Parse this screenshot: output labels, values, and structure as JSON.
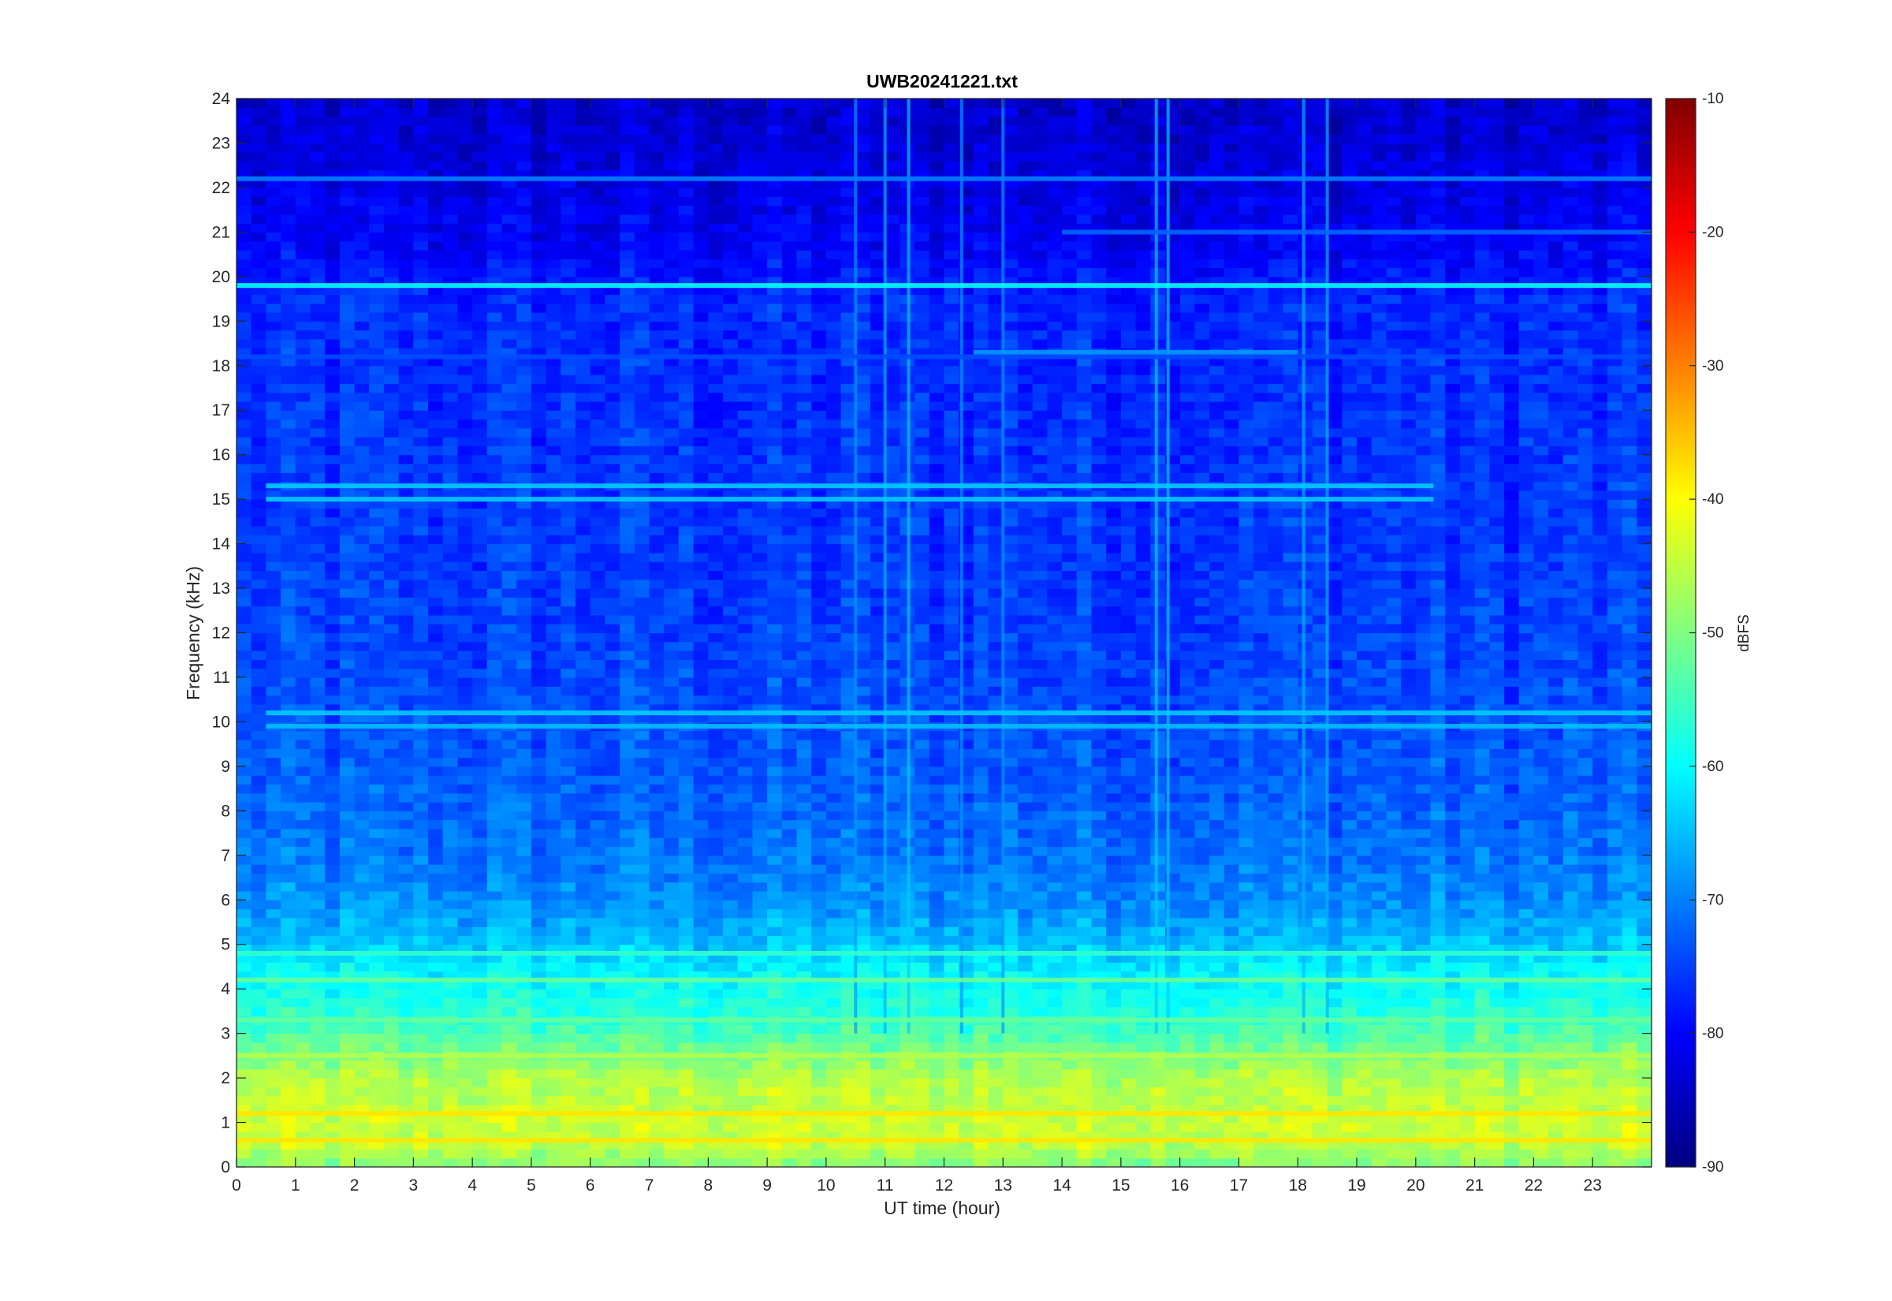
{
  "chart_data": {
    "type": "heatmap",
    "title": "UWB20241221.txt",
    "xlabel": "UT time (hour)",
    "ylabel": "Frequency (kHz)",
    "xlim": [
      0,
      24
    ],
    "ylim": [
      0,
      24
    ],
    "x_ticks": [
      "0",
      "1",
      "2",
      "3",
      "4",
      "5",
      "6",
      "7",
      "8",
      "9",
      "10",
      "11",
      "12",
      "13",
      "14",
      "15",
      "16",
      "17",
      "18",
      "19",
      "20",
      "21",
      "22",
      "23"
    ],
    "y_ticks": [
      "0",
      "1",
      "2",
      "3",
      "4",
      "5",
      "6",
      "7",
      "8",
      "9",
      "10",
      "11",
      "12",
      "13",
      "14",
      "15",
      "16",
      "17",
      "18",
      "19",
      "20",
      "21",
      "22",
      "23",
      "24"
    ],
    "colorbar": {
      "label": "dBFS",
      "range": [
        -90,
        -10
      ],
      "ticks": [
        "-10",
        "-20",
        "-30",
        "-40",
        "-50",
        "-60",
        "-70",
        "-80",
        "-90"
      ],
      "colormap": "jet"
    },
    "background_level_profile": [
      {
        "freq_khz": 0.0,
        "dbfs": -50
      },
      {
        "freq_khz": 0.5,
        "dbfs": -45
      },
      {
        "freq_khz": 1.0,
        "dbfs": -44
      },
      {
        "freq_khz": 1.5,
        "dbfs": -45
      },
      {
        "freq_khz": 2.0,
        "dbfs": -46
      },
      {
        "freq_khz": 2.5,
        "dbfs": -50
      },
      {
        "freq_khz": 3.0,
        "dbfs": -54
      },
      {
        "freq_khz": 3.5,
        "dbfs": -57
      },
      {
        "freq_khz": 4.0,
        "dbfs": -59
      },
      {
        "freq_khz": 4.5,
        "dbfs": -61
      },
      {
        "freq_khz": 5.0,
        "dbfs": -65
      },
      {
        "freq_khz": 6.0,
        "dbfs": -69
      },
      {
        "freq_khz": 7.0,
        "dbfs": -71
      },
      {
        "freq_khz": 9.0,
        "dbfs": -73
      },
      {
        "freq_khz": 12.0,
        "dbfs": -75
      },
      {
        "freq_khz": 16.0,
        "dbfs": -76
      },
      {
        "freq_khz": 19.5,
        "dbfs": -77
      },
      {
        "freq_khz": 20.5,
        "dbfs": -80
      },
      {
        "freq_khz": 22.0,
        "dbfs": -82
      },
      {
        "freq_khz": 24.0,
        "dbfs": -84
      }
    ],
    "horizontal_bands": [
      {
        "freq_khz": 19.8,
        "dbfs": -60,
        "x_start": 0,
        "x_end": 24
      },
      {
        "freq_khz": 22.2,
        "dbfs": -70,
        "x_start": 0,
        "x_end": 24
      },
      {
        "freq_khz": 21.0,
        "dbfs": -72,
        "x_start": 14,
        "x_end": 24
      },
      {
        "freq_khz": 18.3,
        "dbfs": -68,
        "x_start": 12.5,
        "x_end": 18
      },
      {
        "freq_khz": 18.2,
        "dbfs": -74,
        "x_start": 0,
        "x_end": 24
      },
      {
        "freq_khz": 15.3,
        "dbfs": -64,
        "x_start": 0.5,
        "x_end": 20.3
      },
      {
        "freq_khz": 15.0,
        "dbfs": -64,
        "x_start": 0.5,
        "x_end": 20.3
      },
      {
        "freq_khz": 10.2,
        "dbfs": -64,
        "x_start": 0.5,
        "x_end": 24
      },
      {
        "freq_khz": 9.9,
        "dbfs": -65,
        "x_start": 0.5,
        "x_end": 24
      },
      {
        "freq_khz": 4.8,
        "dbfs": -56,
        "x_start": 0,
        "x_end": 24
      },
      {
        "freq_khz": 4.2,
        "dbfs": -52,
        "x_start": 0,
        "x_end": 24
      },
      {
        "freq_khz": 3.3,
        "dbfs": -52,
        "x_start": 0,
        "x_end": 24
      },
      {
        "freq_khz": 2.5,
        "dbfs": -46,
        "x_start": 0,
        "x_end": 24
      },
      {
        "freq_khz": 1.2,
        "dbfs": -38,
        "x_start": 0,
        "x_end": 24
      },
      {
        "freq_khz": 0.6,
        "dbfs": -38,
        "x_start": 0,
        "x_end": 24
      }
    ],
    "vertical_bursts": [
      {
        "time_h": 10.5,
        "dbfs": -68
      },
      {
        "time_h": 11.0,
        "dbfs": -66
      },
      {
        "time_h": 11.4,
        "dbfs": -64
      },
      {
        "time_h": 12.3,
        "dbfs": -68
      },
      {
        "time_h": 13.0,
        "dbfs": -68
      },
      {
        "time_h": 15.6,
        "dbfs": -64
      },
      {
        "time_h": 15.8,
        "dbfs": -64
      },
      {
        "time_h": 18.1,
        "dbfs": -66
      },
      {
        "time_h": 18.5,
        "dbfs": -66
      }
    ]
  }
}
